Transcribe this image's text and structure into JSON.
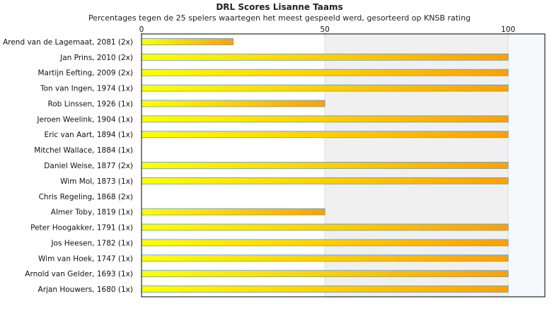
{
  "chart_data": {
    "type": "bar",
    "orientation": "horizontal",
    "title": "DRL Scores Lisanne Taams",
    "subtitle": "Percentages tegen de 25 spelers waartegen het meest gespeeld werd, gesorteerd op KNSB rating",
    "xlim": [
      0,
      110
    ],
    "xticks": [
      0,
      50,
      100
    ],
    "categories": [
      "Arend van de Lagemaat, 2081 (2x)",
      "Jan Prins, 2010 (2x)",
      "Martijn Eefting, 2009 (2x)",
      "Ton van Ingen, 1974 (1x)",
      "Rob Linssen, 1926 (1x)",
      "Jeroen Weelink, 1904 (1x)",
      "Eric van Aart, 1894 (1x)",
      "Mitchel Wallace, 1884 (1x)",
      "Daniel Weise, 1877 (2x)",
      "Wim Mol, 1873 (1x)",
      "Chris Regeling, 1868 (2x)",
      "Almer Toby, 1819 (1x)",
      "Peter Hoogakker, 1791 (1x)",
      "Jos Heesen, 1782 (1x)",
      "Wim van Hoek, 1747 (1x)",
      "Arnold van Gelder, 1693 (1x)",
      "Arjan Houwers, 1680 (1x)"
    ],
    "values": [
      25,
      100,
      100,
      100,
      50,
      100,
      100,
      0,
      100,
      100,
      0,
      50,
      100,
      100,
      100,
      100,
      100
    ],
    "grid": true,
    "colors": {
      "bar_start": "#ffff00",
      "bar_end": "#ffa000",
      "bar_stroke": "#5a9bd5",
      "band": "#f0f0f0",
      "band_end": "#f6f8fc",
      "axis": "#000000"
    }
  }
}
